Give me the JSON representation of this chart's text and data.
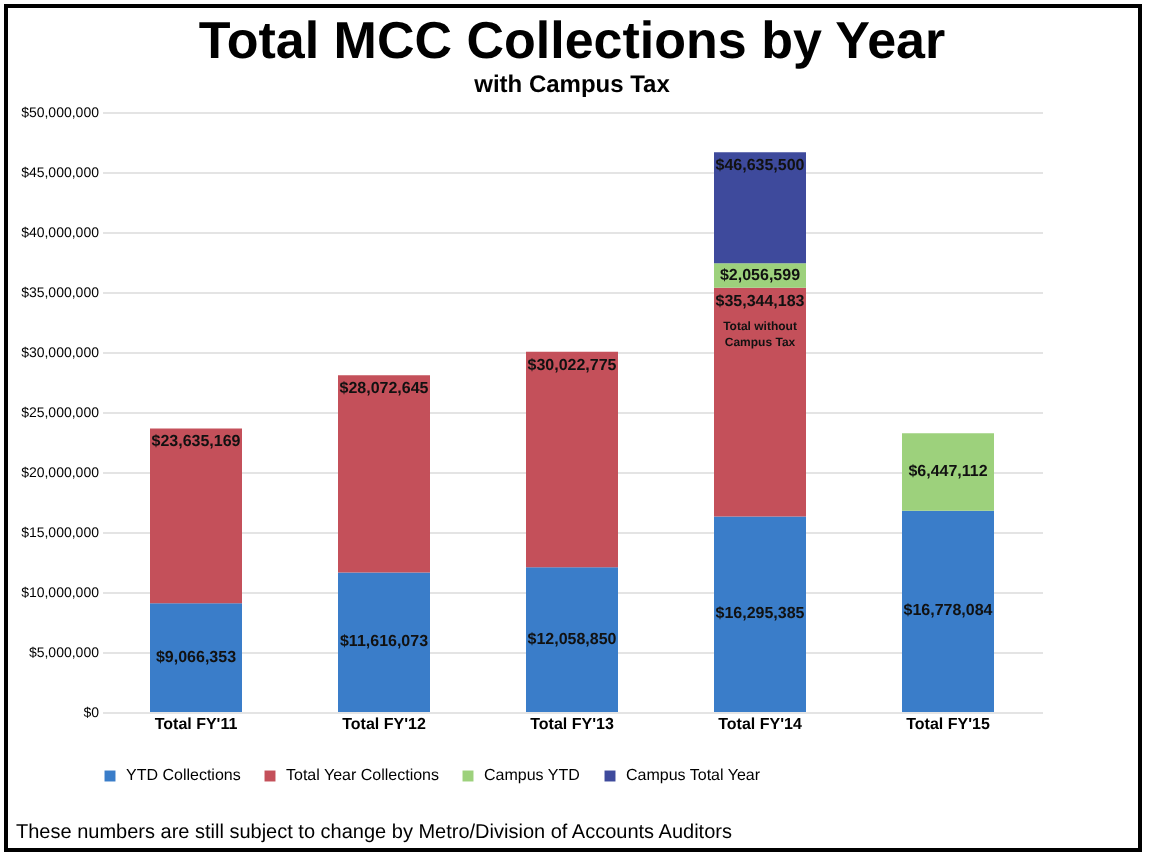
{
  "chart_data": {
    "type": "bar",
    "title": "Total MCC Collections by Year",
    "subtitle": "with Campus Tax",
    "stacked": true,
    "categories": [
      "Total FY'11",
      "Total FY'12",
      "Total FY'13",
      "Total FY'14",
      "Total FY'15"
    ],
    "series": [
      {
        "name": "YTD Collections",
        "color": "#3a7dc9",
        "values": [
          9066353,
          11616073,
          12058850,
          16295385,
          16778084
        ],
        "value_labels": [
          "$9,066,353",
          "$11,616,073",
          "$12,058,850",
          "$16,295,385",
          "$16,778,084"
        ]
      },
      {
        "name": "Total Year Collections",
        "color": "#c4505a",
        "values": [
          14568816,
          16456572,
          17963925,
          19048798,
          null
        ],
        "value_labels": [
          null,
          null,
          null,
          null,
          null
        ]
      },
      {
        "name": "Campus YTD",
        "color": "#9dd17c",
        "values": [
          null,
          null,
          null,
          2056599,
          6447112
        ],
        "value_labels": [
          null,
          null,
          null,
          "$2,056,599",
          "$6,447,112"
        ]
      },
      {
        "name": "Campus Total Year",
        "color": "#3e4a9c",
        "values": [
          null,
          null,
          null,
          9234718,
          null
        ]
      }
    ],
    "ylim": [
      0,
      50000000
    ],
    "yticks": [
      {
        "value": 0,
        "label": "$0"
      },
      {
        "value": 5000000,
        "label": "$5,000,000"
      },
      {
        "value": 10000000,
        "label": "$10,000,000"
      },
      {
        "value": 15000000,
        "label": "$15,000,000"
      },
      {
        "value": 20000000,
        "label": "$20,000,000"
      },
      {
        "value": 25000000,
        "label": "$25,000,000"
      },
      {
        "value": 30000000,
        "label": "$30,000,000"
      },
      {
        "value": 35000000,
        "label": "$35,000,000"
      },
      {
        "value": 40000000,
        "label": "$40,000,000"
      },
      {
        "value": 45000000,
        "label": "$45,000,000"
      },
      {
        "value": 50000000,
        "label": "$50,000,000"
      }
    ],
    "grid": "y",
    "legend": "bottom",
    "annotations": [
      {
        "text": "$23,635,169",
        "x": "Total FY'11",
        "y": 23635169
      },
      {
        "text": "$28,072,645",
        "x": "Total FY'12",
        "y": 28072645
      },
      {
        "text": "$30,022,775",
        "x": "Total FY'13",
        "y": 30022775
      },
      {
        "text": "$35,344,183",
        "x": "Total FY'14",
        "y": 35344183
      },
      {
        "text": "Total without Campus Tax",
        "x": "Total FY'14",
        "y": 35344183
      },
      {
        "text": "$46,635,500",
        "x": "Total FY'14",
        "y": 46635500
      },
      "These numbers are still subject to change by Metro/Division of Accounts Auditors"
    ]
  }
}
